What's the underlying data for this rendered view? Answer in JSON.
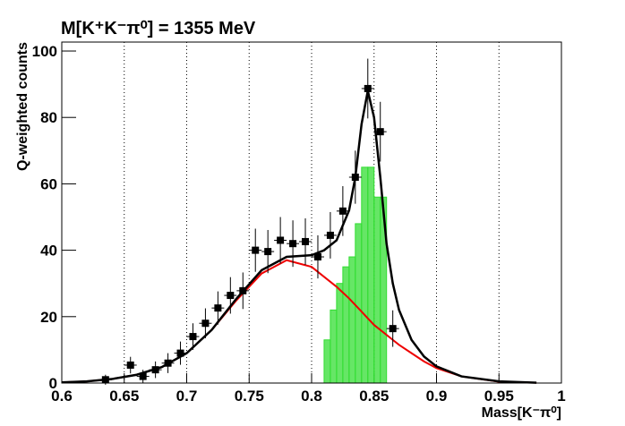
{
  "chart_data": {
    "type": "combo",
    "title": "M[K⁺K⁻π⁰] = 1355 MeV",
    "x_label": "Mass[K⁻π⁰]",
    "y_label": "Q-weighted counts",
    "xlim": [
      0.6,
      1.0
    ],
    "ylim": [
      0,
      102.7
    ],
    "xticks": [
      0.6,
      0.65,
      0.7,
      0.75,
      0.8,
      0.85,
      0.9,
      0.95,
      1
    ],
    "yticks": [
      0,
      20,
      40,
      60,
      80,
      100
    ],
    "grid": "x",
    "series": [
      {
        "type": "histogram",
        "color": "#33dd33",
        "bins": [
          0.81,
          0.815,
          0.82,
          0.825,
          0.83,
          0.835,
          0.84,
          0.845,
          0.85,
          0.855,
          0.86
        ],
        "values": [
          13,
          22,
          30,
          35,
          38,
          48,
          65,
          65,
          56,
          56
        ]
      },
      {
        "type": "line",
        "color": "#ee0000",
        "x": [
          0.6,
          0.62,
          0.64,
          0.66,
          0.68,
          0.7,
          0.72,
          0.74,
          0.76,
          0.78,
          0.8,
          0.81,
          0.82,
          0.83,
          0.835,
          0.84,
          0.845,
          0.85,
          0.855,
          0.86,
          0.865,
          0.87,
          0.88,
          0.89,
          0.9,
          0.92,
          0.95,
          0.98
        ],
        "values": [
          0.2,
          0.5,
          1.2,
          2.5,
          4.8,
          9,
          16,
          25,
          33,
          37,
          35,
          32,
          29,
          25.5,
          23.5,
          21.5,
          19.5,
          17.5,
          16,
          14.5,
          13,
          11.5,
          9,
          6.5,
          4.5,
          2,
          0.4,
          0.1
        ]
      },
      {
        "type": "line",
        "color": "#000000",
        "x": [
          0.6,
          0.62,
          0.64,
          0.66,
          0.68,
          0.7,
          0.72,
          0.74,
          0.76,
          0.78,
          0.8,
          0.81,
          0.82,
          0.83,
          0.835,
          0.84,
          0.845,
          0.85,
          0.855,
          0.86,
          0.865,
          0.87,
          0.88,
          0.89,
          0.9,
          0.92,
          0.95,
          0.98
        ],
        "values": [
          0.2,
          0.5,
          1.2,
          2.5,
          4.8,
          9,
          16,
          25.5,
          34,
          38,
          38.5,
          40,
          43,
          52,
          62,
          78,
          88,
          80,
          62,
          42,
          30,
          22,
          13,
          8,
          5,
          2,
          0.5,
          0.1
        ]
      },
      {
        "type": "errorbar",
        "color": "#000000",
        "x_error": 0.005,
        "x": [
          0.635,
          0.655,
          0.665,
          0.675,
          0.685,
          0.695,
          0.705,
          0.715,
          0.725,
          0.735,
          0.745,
          0.755,
          0.765,
          0.775,
          0.785,
          0.795,
          0.805,
          0.815,
          0.825,
          0.835,
          0.845,
          0.855,
          0.865
        ],
        "values": [
          1,
          5.4,
          2,
          4,
          6,
          9,
          14,
          18,
          22.6,
          26.4,
          27.8,
          40,
          39.6,
          43,
          42,
          42.6,
          38,
          44.5,
          51.8,
          62,
          88.7,
          75.7,
          16.4
        ],
        "errors": [
          1.5,
          2.5,
          2,
          2.5,
          3,
          3.5,
          4,
          4.5,
          5,
          5.5,
          5.5,
          6.5,
          6.5,
          7,
          7,
          7,
          6.5,
          7,
          7.5,
          8,
          9,
          9,
          5.5
        ]
      }
    ]
  }
}
